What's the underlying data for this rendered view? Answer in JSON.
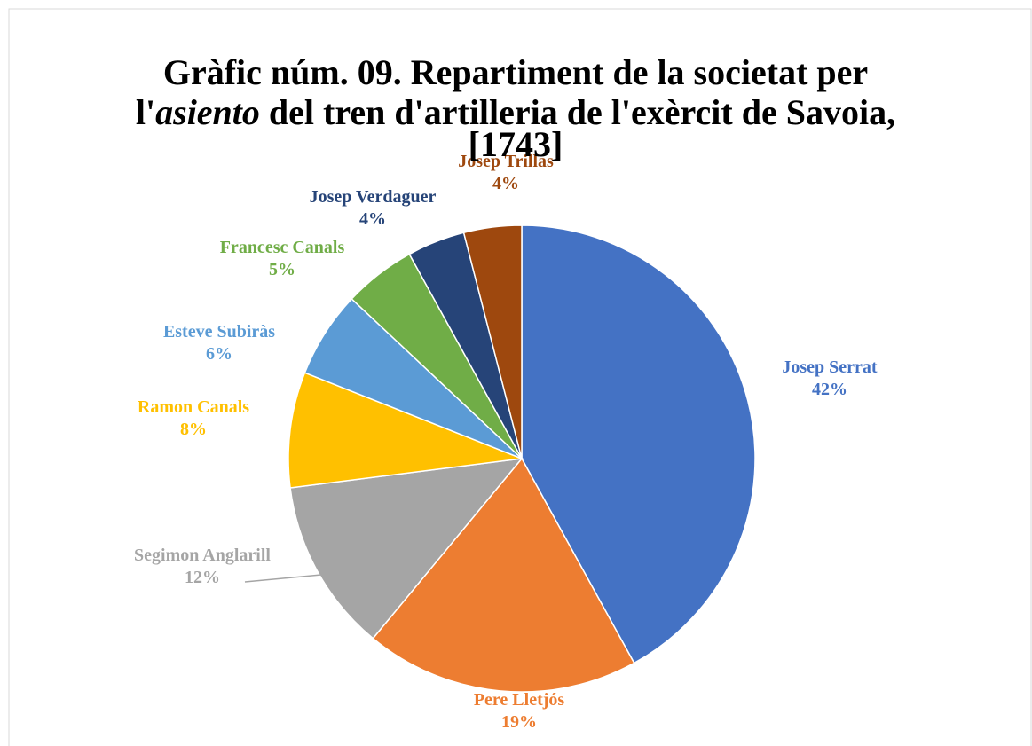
{
  "chart_data": {
    "type": "pie",
    "title": [
      [
        {
          "text": "Gràfic núm. 09. Repartiment de la societat per"
        }
      ],
      [
        {
          "text": "l'"
        },
        {
          "text": "asiento",
          "italic": true
        },
        {
          "text": " del tren d'artilleria de l'exèrcit de Savoia,"
        }
      ],
      [
        {
          "text": "[1743]"
        }
      ]
    ],
    "categories": [
      "Josep Serrat",
      "Pere Lletjós",
      "Segimon Anglarill",
      "Ramon Canals",
      "Esteve Subiràs",
      "Francesc Canals",
      "Josep Verdaguer",
      "Josep Trillas"
    ],
    "values": [
      42,
      19,
      12,
      8,
      6,
      5,
      4,
      4
    ],
    "value_labels": [
      "42%",
      "19%",
      "12%",
      "8%",
      "6%",
      "5%",
      "4%",
      "4%"
    ],
    "colors": [
      "#4472c4",
      "#ed7d31",
      "#a5a5a5",
      "#ffc000",
      "#5b9bd5",
      "#70ad47",
      "#264478",
      "#9e480e"
    ]
  }
}
